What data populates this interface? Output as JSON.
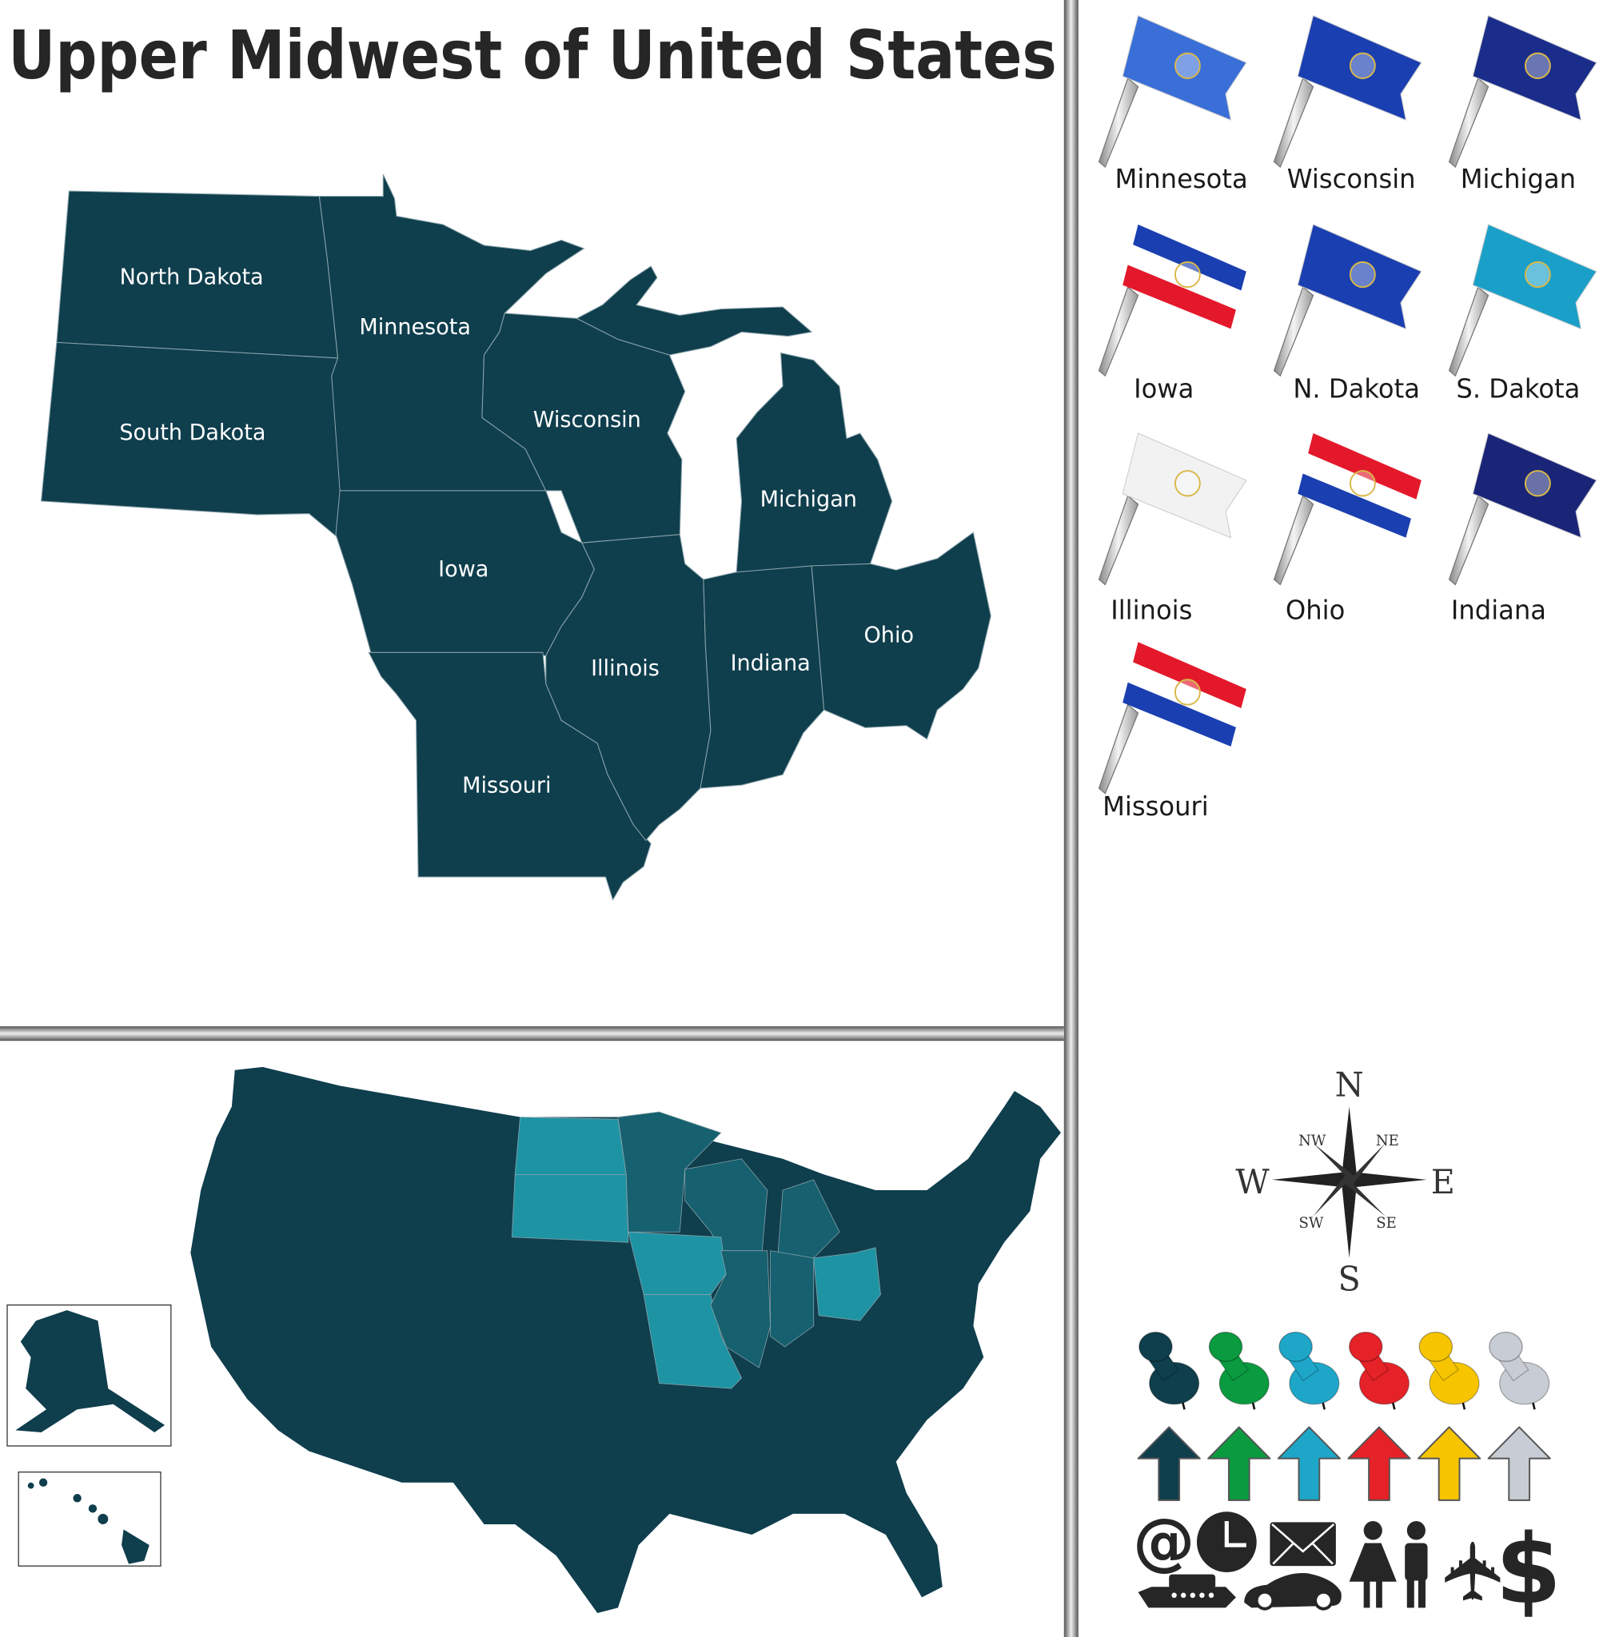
{
  "title": "Upper Midwest of United States",
  "colors": {
    "state_fill": "#0f3e4d",
    "highlight_primary": "#1e93a3",
    "highlight_secondary": "#16606f",
    "title_text": "#262626"
  },
  "regional_map": {
    "labels": {
      "north_dakota": "North Dakota",
      "south_dakota": "South Dakota",
      "minnesota": "Minnesota",
      "wisconsin": "Wisconsin",
      "michigan": "Michigan",
      "iowa": "Iowa",
      "illinois": "Illinois",
      "indiana": "Indiana",
      "ohio": "Ohio",
      "missouri": "Missouri"
    }
  },
  "flags": [
    {
      "label": "Minnesota",
      "colors": [
        "#3a6fd8"
      ]
    },
    {
      "label": "Wisconsin",
      "colors": [
        "#1a3fb0"
      ]
    },
    {
      "label": "Michigan",
      "colors": [
        "#1a2d8a"
      ]
    },
    {
      "label": "Iowa",
      "colors": [
        "#1a3fb0",
        "#ffffff",
        "#e3192b"
      ]
    },
    {
      "label": "N. Dakota",
      "colors": [
        "#1a3fb0"
      ]
    },
    {
      "label": "S. Dakota",
      "colors": [
        "#1aa0c8"
      ]
    },
    {
      "label": "Illinois",
      "colors": [
        "#f2f2f2"
      ]
    },
    {
      "label": "Ohio",
      "colors": [
        "#e3192b",
        "#ffffff",
        "#1a3fb0"
      ]
    },
    {
      "label": "Indiana",
      "colors": [
        "#1a2578"
      ]
    },
    {
      "label": "Missouri",
      "colors": [
        "#e3192b",
        "#ffffff",
        "#1a3fb0"
      ]
    }
  ],
  "compass": {
    "n": "N",
    "s": "S",
    "e": "E",
    "w": "W",
    "ne": "NE",
    "nw": "NW",
    "se": "SE",
    "sw": "SW"
  },
  "pin_colors": [
    "#0f3e4d",
    "#0a9a40",
    "#1ea6c8",
    "#e52228",
    "#f6c500",
    "#c8ccd4"
  ],
  "icons": {
    "at": "@",
    "dollar": "$",
    "envelope": "✉",
    "airplane": "✈"
  }
}
